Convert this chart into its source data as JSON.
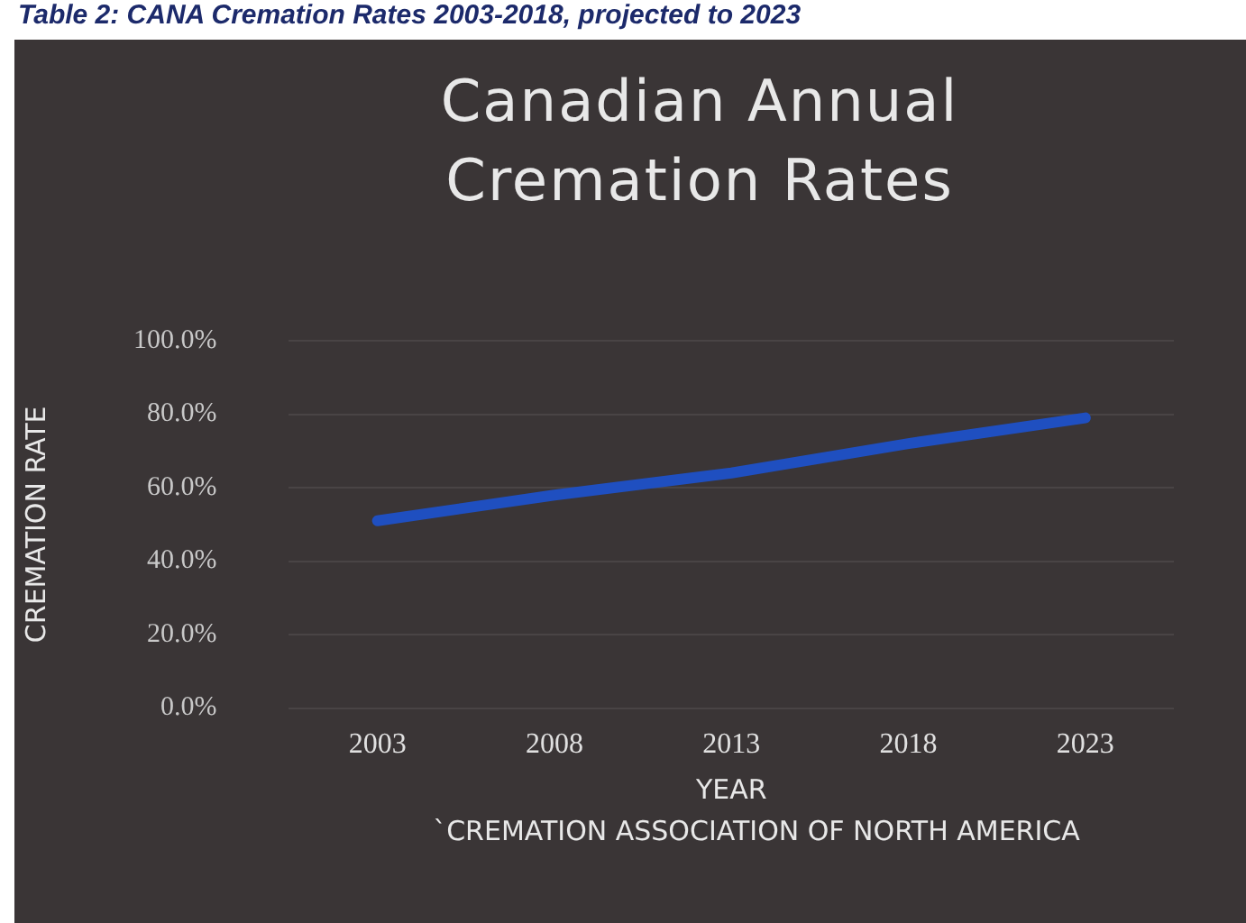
{
  "chart_data": {
    "type": "line",
    "title": "Canadian Annual Cremation Rates",
    "subtitle": "Table 2: CANA Cremation Rates 2003-2018, projected to 2023",
    "xlabel": "YEAR",
    "ylabel": "CREMATION RATE",
    "categories": [
      "2003",
      "2008",
      "2013",
      "2018",
      "2023"
    ],
    "series": [
      {
        "color": "#1f4fc0",
        "values": [
          51,
          58,
          64,
          72,
          79
        ]
      }
    ],
    "ylim": [
      0,
      100
    ],
    "yticks": [
      {
        "value": 0,
        "label": "0.0%"
      },
      {
        "value": 20,
        "label": "20.0%"
      },
      {
        "value": 40,
        "label": "40.0%"
      },
      {
        "value": 60,
        "label": "60.0%"
      },
      {
        "value": 80,
        "label": "80.0%"
      },
      {
        "value": 100,
        "label": "100.0%"
      }
    ],
    "grid": "y",
    "legend": false,
    "marker": "none",
    "line_style": "solid",
    "annotations": [
      "`CREMATION ASSOCIATION OF NORTH AMERICA"
    ]
  }
}
